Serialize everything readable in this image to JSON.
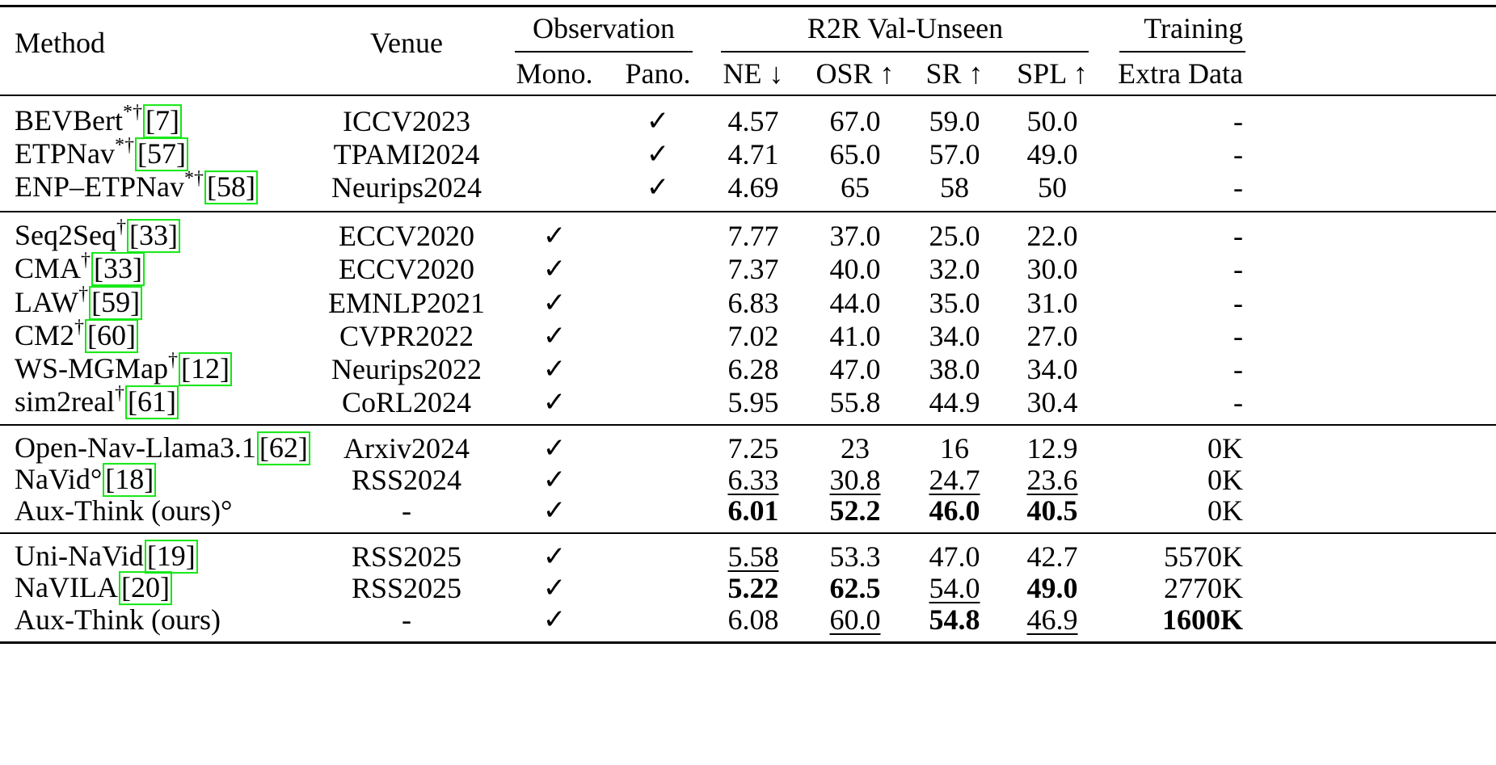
{
  "header": {
    "method": "Method",
    "venue": "Venue",
    "observation": "Observation",
    "mono": "Mono.",
    "pano": "Pano.",
    "r2r": "R2R Val-Unseen",
    "ne": "NE ↓",
    "osr": "OSR ↑",
    "sr": "SR ↑",
    "spl": "SPL ↑",
    "training": "Training",
    "extra_data": "Extra Data"
  },
  "check_glyph": "✓",
  "cite_border_color": "#11e811",
  "groups": [
    [
      {
        "name": "BEVBert",
        "sup": "*†",
        "cite": "7",
        "venue": "ICCV2023",
        "mono": false,
        "pano": true,
        "ne": {
          "v": "4.57"
        },
        "osr": {
          "v": "67.0"
        },
        "sr": {
          "v": "59.0"
        },
        "spl": {
          "v": "50.0"
        },
        "extra": {
          "v": "-"
        }
      },
      {
        "name": "ETPNav",
        "sup": "*†",
        "cite": "57",
        "venue": "TPAMI2024",
        "mono": false,
        "pano": true,
        "ne": {
          "v": "4.71"
        },
        "osr": {
          "v": "65.0"
        },
        "sr": {
          "v": "57.0"
        },
        "spl": {
          "v": "49.0"
        },
        "extra": {
          "v": "-"
        }
      },
      {
        "name": "ENP–ETPNav",
        "sup": "*†",
        "cite": "58",
        "venue": "Neurips2024",
        "mono": false,
        "pano": true,
        "ne": {
          "v": "4.69"
        },
        "osr": {
          "v": "65"
        },
        "sr": {
          "v": "58"
        },
        "spl": {
          "v": "50"
        },
        "extra": {
          "v": "-"
        }
      }
    ],
    [
      {
        "name": "Seq2Seq",
        "sup": "†",
        "cite": "33",
        "venue": "ECCV2020",
        "mono": true,
        "pano": false,
        "ne": {
          "v": "7.77"
        },
        "osr": {
          "v": "37.0"
        },
        "sr": {
          "v": "25.0"
        },
        "spl": {
          "v": "22.0"
        },
        "extra": {
          "v": "-"
        }
      },
      {
        "name": "CMA",
        "sup": "†",
        "cite": "33",
        "venue": "ECCV2020",
        "mono": true,
        "pano": false,
        "ne": {
          "v": "7.37"
        },
        "osr": {
          "v": "40.0"
        },
        "sr": {
          "v": "32.0"
        },
        "spl": {
          "v": "30.0"
        },
        "extra": {
          "v": "-"
        }
      },
      {
        "name": "LAW",
        "sup": "†",
        "cite": "59",
        "venue": "EMNLP2021",
        "mono": true,
        "pano": false,
        "ne": {
          "v": "6.83"
        },
        "osr": {
          "v": "44.0"
        },
        "sr": {
          "v": "35.0"
        },
        "spl": {
          "v": "31.0"
        },
        "extra": {
          "v": "-"
        }
      },
      {
        "name": "CM2",
        "sup": "†",
        "cite": "60",
        "venue": "CVPR2022",
        "mono": true,
        "pano": false,
        "ne": {
          "v": "7.02"
        },
        "osr": {
          "v": "41.0"
        },
        "sr": {
          "v": "34.0"
        },
        "spl": {
          "v": "27.0"
        },
        "extra": {
          "v": "-"
        }
      },
      {
        "name": "WS-MGMap",
        "sup": "†",
        "cite": "12",
        "venue": "Neurips2022",
        "mono": true,
        "pano": false,
        "ne": {
          "v": "6.28"
        },
        "osr": {
          "v": "47.0"
        },
        "sr": {
          "v": "38.0"
        },
        "spl": {
          "v": "34.0"
        },
        "extra": {
          "v": "-"
        }
      },
      {
        "name": "sim2real",
        "sup": "†",
        "cite": "61",
        "venue": "CoRL2024",
        "mono": true,
        "pano": false,
        "ne": {
          "v": "5.95"
        },
        "osr": {
          "v": "55.8"
        },
        "sr": {
          "v": "44.9"
        },
        "spl": {
          "v": "30.4"
        },
        "extra": {
          "v": "-"
        }
      }
    ],
    [
      {
        "name": "Open-Nav-Llama3.1",
        "sup": "",
        "cite": "62",
        "venue": "Arxiv2024",
        "mono": true,
        "pano": false,
        "ne": {
          "v": "7.25"
        },
        "osr": {
          "v": "23"
        },
        "sr": {
          "v": "16"
        },
        "spl": {
          "v": "12.9"
        },
        "extra": {
          "v": "0K"
        }
      },
      {
        "name": "NaVid°",
        "sup": "",
        "cite": "18",
        "venue": "RSS2024",
        "mono": true,
        "pano": false,
        "ne": {
          "v": "6.33",
          "u": true
        },
        "osr": {
          "v": "30.8",
          "u": true
        },
        "sr": {
          "v": "24.7",
          "u": true
        },
        "spl": {
          "v": "23.6",
          "u": true
        },
        "extra": {
          "v": "0K"
        }
      },
      {
        "name": "Aux-Think (ours)°",
        "sup": "",
        "cite": "",
        "venue": "-",
        "mono": true,
        "pano": false,
        "ne": {
          "v": "6.01",
          "b": true
        },
        "osr": {
          "v": "52.2",
          "b": true
        },
        "sr": {
          "v": "46.0",
          "b": true
        },
        "spl": {
          "v": "40.5",
          "b": true
        },
        "extra": {
          "v": "0K"
        }
      }
    ],
    [
      {
        "name": "Uni-NaVid",
        "sup": "",
        "cite": "19",
        "venue": "RSS2025",
        "mono": true,
        "pano": false,
        "ne": {
          "v": "5.58",
          "u": true
        },
        "osr": {
          "v": "53.3"
        },
        "sr": {
          "v": "47.0"
        },
        "spl": {
          "v": "42.7"
        },
        "extra": {
          "v": "5570K"
        }
      },
      {
        "name": "NaVILA",
        "sup": "",
        "cite": "20",
        "venue": "RSS2025",
        "mono": true,
        "pano": false,
        "ne": {
          "v": "5.22",
          "b": true
        },
        "osr": {
          "v": "62.5",
          "b": true
        },
        "sr": {
          "v": "54.0",
          "u": true
        },
        "spl": {
          "v": "49.0",
          "b": true
        },
        "extra": {
          "v": "2770K"
        }
      },
      {
        "name": "Aux-Think (ours)",
        "sup": "",
        "cite": "",
        "venue": "-",
        "mono": true,
        "pano": false,
        "ne": {
          "v": "6.08"
        },
        "osr": {
          "v": "60.0",
          "u": true
        },
        "sr": {
          "v": "54.8",
          "b": true
        },
        "spl": {
          "v": "46.9",
          "u": true
        },
        "extra": {
          "v": "1600K",
          "b": true
        }
      }
    ]
  ]
}
